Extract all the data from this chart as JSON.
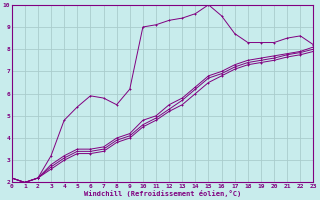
{
  "xlabel": "Windchill (Refroidissement éolien,°C)",
  "background_color": "#c8ecec",
  "grid_color": "#b0d8d8",
  "line_color": "#800080",
  "x_min": 0,
  "x_max": 23,
  "y_min": 2,
  "y_max": 10,
  "series1_x": [
    0,
    1,
    2,
    3,
    4,
    5,
    6,
    7,
    8,
    9,
    10,
    11,
    12,
    13,
    14,
    15,
    16,
    17,
    18,
    19,
    20,
    21,
    22,
    23
  ],
  "series1_y": [
    2.2,
    2.0,
    2.2,
    3.2,
    4.8,
    5.4,
    5.9,
    5.8,
    5.5,
    6.2,
    9.0,
    9.1,
    9.3,
    9.4,
    9.6,
    10.0,
    9.5,
    8.7,
    8.3,
    8.3,
    8.3,
    8.5,
    8.6,
    8.2
  ],
  "series2_x": [
    0,
    1,
    2,
    3,
    4,
    5,
    6,
    7,
    8,
    9,
    10,
    11,
    12,
    13,
    14,
    15,
    16,
    17,
    18,
    19,
    20,
    21,
    22,
    23
  ],
  "series2_y": [
    2.2,
    2.0,
    2.2,
    2.8,
    3.2,
    3.5,
    3.5,
    3.6,
    4.0,
    4.2,
    4.8,
    5.0,
    5.5,
    5.8,
    6.3,
    6.8,
    7.0,
    7.3,
    7.5,
    7.6,
    7.7,
    7.8,
    7.9,
    8.1
  ],
  "series3_x": [
    0,
    1,
    2,
    3,
    4,
    5,
    6,
    7,
    8,
    9,
    10,
    11,
    12,
    13,
    14,
    15,
    16,
    17,
    18,
    19,
    20,
    21,
    22,
    23
  ],
  "series3_y": [
    2.2,
    2.0,
    2.2,
    2.7,
    3.1,
    3.4,
    3.4,
    3.5,
    3.9,
    4.1,
    4.6,
    4.9,
    5.3,
    5.7,
    6.2,
    6.7,
    6.9,
    7.2,
    7.4,
    7.5,
    7.6,
    7.75,
    7.85,
    8.0
  ],
  "series4_x": [
    0,
    1,
    2,
    3,
    4,
    5,
    6,
    7,
    8,
    9,
    10,
    11,
    12,
    13,
    14,
    15,
    16,
    17,
    18,
    19,
    20,
    21,
    22,
    23
  ],
  "series4_y": [
    2.2,
    2.0,
    2.2,
    2.6,
    3.0,
    3.3,
    3.3,
    3.4,
    3.8,
    4.0,
    4.5,
    4.8,
    5.2,
    5.5,
    6.0,
    6.5,
    6.8,
    7.1,
    7.3,
    7.4,
    7.5,
    7.65,
    7.75,
    7.9
  ]
}
